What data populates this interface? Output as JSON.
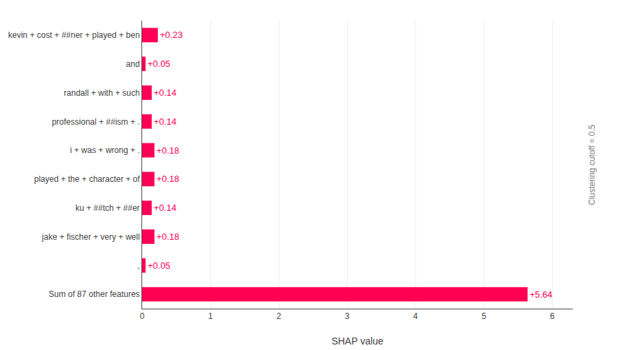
{
  "chart_data": {
    "type": "bar",
    "orientation": "horizontal",
    "categories": [
      "Sum of 87 other features",
      ",",
      "jake + fischer + very + well",
      "ku + ##tch + ##er",
      "played + the + character + of",
      "i + was + wrong + .",
      "professional + ##ism + .",
      "randall + with + such",
      "and",
      "kevin + cost + ##ner + played + ben"
    ],
    "values": [
      5.64,
      0.05,
      0.18,
      0.14,
      0.18,
      0.18,
      0.14,
      0.14,
      0.05,
      0.23
    ],
    "value_labels": [
      "+5.64",
      "+0.05",
      "+0.18",
      "+0.14",
      "+0.18",
      "+0.18",
      "+0.14",
      "+0.14",
      "+0.05",
      "+0.23"
    ],
    "data_labels": true,
    "color": "#ff0055",
    "xlabel": "SHAP value",
    "xlim": [
      0,
      6.3
    ],
    "xticks": [
      0,
      1,
      2,
      3,
      4,
      5,
      6
    ],
    "grid": true,
    "annotations": [
      "Clustering cutoff = 0.5"
    ]
  }
}
